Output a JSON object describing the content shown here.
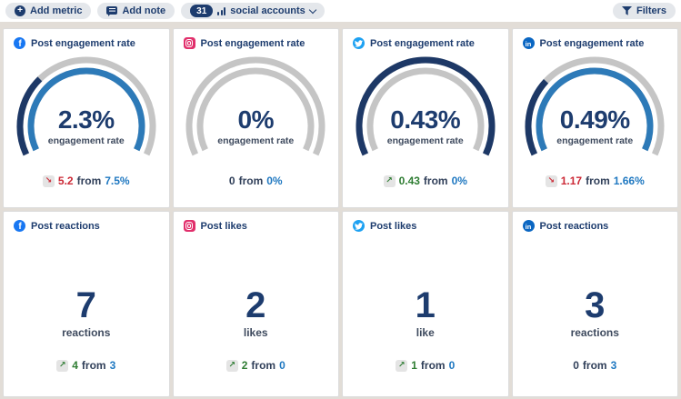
{
  "toolbar": {
    "add_metric_label": "Add metric",
    "add_note_label": "Add note",
    "accounts_count": "31",
    "accounts_label": "social accounts",
    "filters_label": "Filters"
  },
  "colors": {
    "navy": "#1d3c6e",
    "gauge_current": "#1d3866",
    "gauge_previous": "#2d7ab8",
    "gauge_track": "#c5c5c5",
    "positive_green": "#2f7d33",
    "negative_red": "#cc2936",
    "previous_blue": "#1f78c1",
    "page_background": "#e2ddd7",
    "facebook_blue": "#1877f2",
    "instagram_pink": "#e1306c",
    "twitter_blue": "#1da1f2",
    "linkedin_blue": "#0a66c2"
  },
  "cards": [
    {
      "network": "facebook",
      "title": "Post engagement rate",
      "kind": "gauge",
      "value": "2.3%",
      "value_label": "engagement rate",
      "gauge": {
        "current": 2.3,
        "previous": 7.5
      },
      "change": {
        "arrow": "down",
        "delta": "5.2",
        "from_word": "from",
        "previous": "7.5%"
      }
    },
    {
      "network": "instagram",
      "title": "Post engagement rate",
      "kind": "gauge",
      "value": "0%",
      "value_label": "engagement rate",
      "gauge": {
        "current": 0,
        "previous": 0
      },
      "change": {
        "arrow": null,
        "delta": "0",
        "from_word": "from",
        "previous": "0%"
      }
    },
    {
      "network": "twitter",
      "title": "Post engagement rate",
      "kind": "gauge",
      "value": "0.43%",
      "value_label": "engagement rate",
      "gauge": {
        "current": 0.43,
        "previous": 0
      },
      "change": {
        "arrow": "up",
        "delta": "0.43",
        "from_word": "from",
        "previous": "0%"
      }
    },
    {
      "network": "linkedin",
      "title": "Post engagement rate",
      "kind": "gauge",
      "value": "0.49%",
      "value_label": "engagement rate",
      "gauge": {
        "current": 0.49,
        "previous": 1.66
      },
      "change": {
        "arrow": "down",
        "delta": "1.17",
        "from_word": "from",
        "previous": "1.66%"
      }
    },
    {
      "network": "facebook",
      "title": "Post reactions",
      "kind": "number",
      "value": "7",
      "value_label": "reactions",
      "change": {
        "arrow": "up",
        "delta": "4",
        "from_word": "from",
        "previous": "3"
      }
    },
    {
      "network": "instagram",
      "title": "Post likes",
      "kind": "number",
      "value": "2",
      "value_label": "likes",
      "change": {
        "arrow": "up",
        "delta": "2",
        "from_word": "from",
        "previous": "0"
      }
    },
    {
      "network": "twitter",
      "title": "Post likes",
      "kind": "number",
      "value": "1",
      "value_label": "like",
      "change": {
        "arrow": "up",
        "delta": "1",
        "from_word": "from",
        "previous": "0"
      }
    },
    {
      "network": "linkedin",
      "title": "Post reactions",
      "kind": "number",
      "value": "3",
      "value_label": "reactions",
      "change": {
        "arrow": null,
        "delta": "0",
        "from_word": "from",
        "previous": "3"
      }
    }
  ]
}
